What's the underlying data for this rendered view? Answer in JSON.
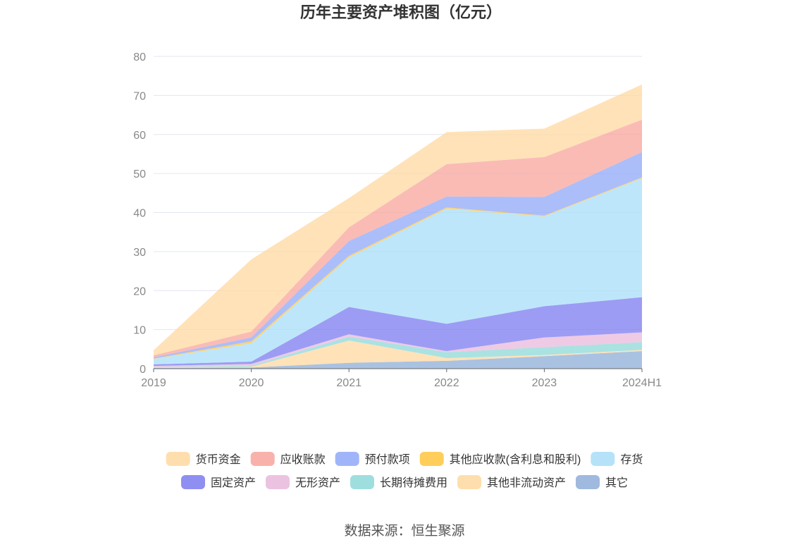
{
  "chart_data": {
    "type": "area",
    "title": "历年主要资产堆积图（亿元）",
    "xlabel": "",
    "ylabel": "",
    "ylim": [
      0,
      80
    ],
    "y_ticks": [
      0,
      10,
      20,
      30,
      40,
      50,
      60,
      70,
      80
    ],
    "categories": [
      "2019",
      "2020",
      "2021",
      "2022",
      "2023",
      "2024H1"
    ],
    "stacked": true,
    "legend_position": "bottom",
    "grid": true,
    "series": [
      {
        "name": "其它",
        "color": "#8eaed8",
        "values": [
          0.2,
          0.3,
          1.5,
          2.0,
          3.2,
          4.5
        ]
      },
      {
        "name": "其他非流动资产",
        "color": "#ffd8a0",
        "values": [
          0.1,
          0.2,
          5.7,
          0.7,
          0.3,
          0.3
        ]
      },
      {
        "name": "长期待摊费用",
        "color": "#8ed8d8",
        "values": [
          0.1,
          0.3,
          1.0,
          1.5,
          2.0,
          2.0
        ]
      },
      {
        "name": "无形资产",
        "color": "#e8b8dc",
        "values": [
          0.3,
          0.4,
          0.6,
          0.3,
          2.5,
          2.5
        ]
      },
      {
        "name": "固定资产",
        "color": "#7b7bf0",
        "values": [
          0.4,
          0.6,
          7.0,
          7.0,
          8.0,
          9.0
        ]
      },
      {
        "name": "存货",
        "color": "#a8ddf8",
        "values": [
          1.4,
          4.7,
          12.7,
          29.5,
          23.0,
          30.5
        ]
      },
      {
        "name": "其他应收款(含利息和股利)",
        "color": "#ffc53d",
        "values": [
          0.1,
          0.5,
          0.4,
          0.3,
          0.2,
          0.2
        ]
      },
      {
        "name": "预付款项",
        "color": "#8fa8f8",
        "values": [
          0.3,
          1.0,
          3.8,
          2.8,
          4.8,
          6.5
        ]
      },
      {
        "name": "应收账款",
        "color": "#f8a49c",
        "values": [
          0.5,
          1.5,
          3.5,
          8.3,
          10.2,
          8.3
        ]
      },
      {
        "name": "货币资金",
        "color": "#ffd8a0",
        "values": [
          1.3,
          18.5,
          7.5,
          8.2,
          7.3,
          9.0
        ]
      }
    ],
    "legend_order": [
      "货币资金",
      "应收账款",
      "预付款项",
      "其他应收款(含利息和股利)",
      "存货",
      "固定资产",
      "无形资产",
      "长期待摊费用",
      "其他非流动资产",
      "其它"
    ]
  },
  "source_text": "数据来源：恒生聚源"
}
